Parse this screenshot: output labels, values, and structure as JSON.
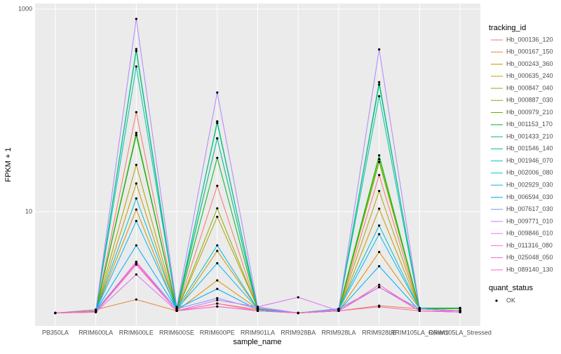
{
  "chart_data": {
    "type": "line",
    "x_label": "sample_name",
    "y_label": "FPKM + 1",
    "log_y": true,
    "grid": true,
    "categories": [
      "PB350LA",
      "RRIM600LA",
      "RRIM600LE",
      "RRIM600SE",
      "RRIM600PE",
      "RRIM901LA",
      "RRIM928BA",
      "RRIM928LA",
      "RRIM928LE",
      "RRIM105LA_Control",
      "RRIM105LA_Stressed"
    ],
    "ylim": [
      0.745,
      1135
    ],
    "yticks": [
      10,
      1000
    ],
    "legend_title": "tracking_id",
    "series": [
      {
        "name": "Hb_000136_120",
        "color": "#F8766D",
        "values": [
          1,
          1.03,
          96,
          1.05,
          18,
          1.08,
          1,
          1.05,
          23,
          1.1,
          1.05
        ]
      },
      {
        "name": "Hb_000167_150",
        "color": "#EC8239",
        "values": [
          1,
          1.08,
          1.36,
          1.05,
          1.24,
          1.08,
          1,
          1.05,
          1.18,
          1.1,
          1.05
        ]
      },
      {
        "name": "Hb_000243_360",
        "color": "#DB8E00",
        "values": [
          1,
          1.05,
          10.5,
          1.05,
          2.1,
          1.1,
          1,
          1.05,
          4.0,
          1.1,
          1.05
        ]
      },
      {
        "name": "Hb_000635_240",
        "color": "#C79800",
        "values": [
          1,
          1.05,
          19,
          1.05,
          4.1,
          1.1,
          1,
          1.05,
          10.7,
          1.1,
          1.05
        ]
      },
      {
        "name": "Hb_000847_040",
        "color": "#AEA200",
        "values": [
          1,
          1.05,
          29,
          1.05,
          8.9,
          1.12,
          1,
          1.05,
          16,
          1.1,
          1.05
        ]
      },
      {
        "name": "Hb_000887_030",
        "color": "#8FAA00",
        "values": [
          1,
          1.05,
          57,
          1.05,
          10.8,
          1.1,
          1,
          1.05,
          31,
          1.1,
          1.05
        ]
      },
      {
        "name": "Hb_000979_210",
        "color": "#64B200",
        "values": [
          1,
          1.05,
          60,
          1.05,
          53,
          1.08,
          1,
          1.08,
          33,
          1.1,
          1.1
        ]
      },
      {
        "name": "Hb_001153_170",
        "color": "#00B81B",
        "values": [
          1,
          1.05,
          57,
          1.05,
          34,
          1.08,
          1,
          1.08,
          36,
          1.1,
          1.12
        ]
      },
      {
        "name": "Hb_001433_210",
        "color": "#00BD5C",
        "values": [
          1,
          1.05,
          385,
          1.05,
          78,
          1.08,
          1,
          1.1,
          180,
          1.12,
          1.12
        ]
      },
      {
        "name": "Hb_001546_140",
        "color": "#00C08D",
        "values": [
          1,
          1.05,
          403,
          1.1,
          75,
          1.1,
          1,
          1.1,
          190,
          1.1,
          1.05
        ]
      },
      {
        "name": "Hb_001946_070",
        "color": "#00C1B2",
        "values": [
          1,
          1.05,
          271,
          1.1,
          53,
          1.1,
          1,
          1.1,
          138,
          1.1,
          1.05
        ]
      },
      {
        "name": "Hb_002006_080",
        "color": "#00BFD4",
        "values": [
          1,
          1.05,
          13.5,
          1.1,
          4.65,
          1.1,
          1,
          1.1,
          7.3,
          1.1,
          1.05
        ]
      },
      {
        "name": "Hb_002929_030",
        "color": "#00B8EE",
        "values": [
          1,
          1.05,
          8.1,
          1.1,
          3.1,
          1.1,
          1,
          1.08,
          6.0,
          1.1,
          1.05
        ]
      },
      {
        "name": "Hb_006594_030",
        "color": "#00ABFD",
        "values": [
          1,
          1.05,
          4.65,
          1.1,
          1.73,
          1.08,
          1,
          1.05,
          2.9,
          1.05,
          1.05
        ]
      },
      {
        "name": "Hb_007617_030",
        "color": "#7997FF",
        "values": [
          1,
          1.05,
          3.2,
          1.1,
          1.4,
          1.1,
          1,
          1.1,
          1.8,
          1.1,
          1.05
        ]
      },
      {
        "name": "Hb_009771_010",
        "color": "#B385FF",
        "values": [
          1,
          1.05,
          800,
          1.15,
          150,
          1.15,
          1,
          1.08,
          400,
          1.1,
          1.05
        ]
      },
      {
        "name": "Hb_009846_010",
        "color": "#DC71FA",
        "values": [
          1,
          1.02,
          2.4,
          1.05,
          1.34,
          1.15,
          1.43,
          1.05,
          1.8,
          1.05,
          1.05
        ]
      },
      {
        "name": "Hb_011316_080",
        "color": "#F265E7",
        "values": [
          1,
          1.02,
          3.1,
          1.05,
          1.16,
          1.05,
          1,
          1.05,
          1.8,
          1.05,
          1.02
        ]
      },
      {
        "name": "Hb_025048_050",
        "color": "#FF62CE",
        "values": [
          1,
          1.02,
          3.2,
          1.05,
          1.16,
          1.05,
          1,
          1.05,
          1.15,
          1.05,
          1.02
        ]
      },
      {
        "name": "Hb_089140_130",
        "color": "#FF6AAC",
        "values": [
          1,
          1.02,
          3.0,
          1.05,
          1.24,
          1.05,
          1,
          1.05,
          1.9,
          1.05,
          1.02
        ]
      }
    ],
    "point_legend": {
      "title": "quant_status",
      "entries": [
        "OK"
      ],
      "color": "#000000"
    }
  }
}
